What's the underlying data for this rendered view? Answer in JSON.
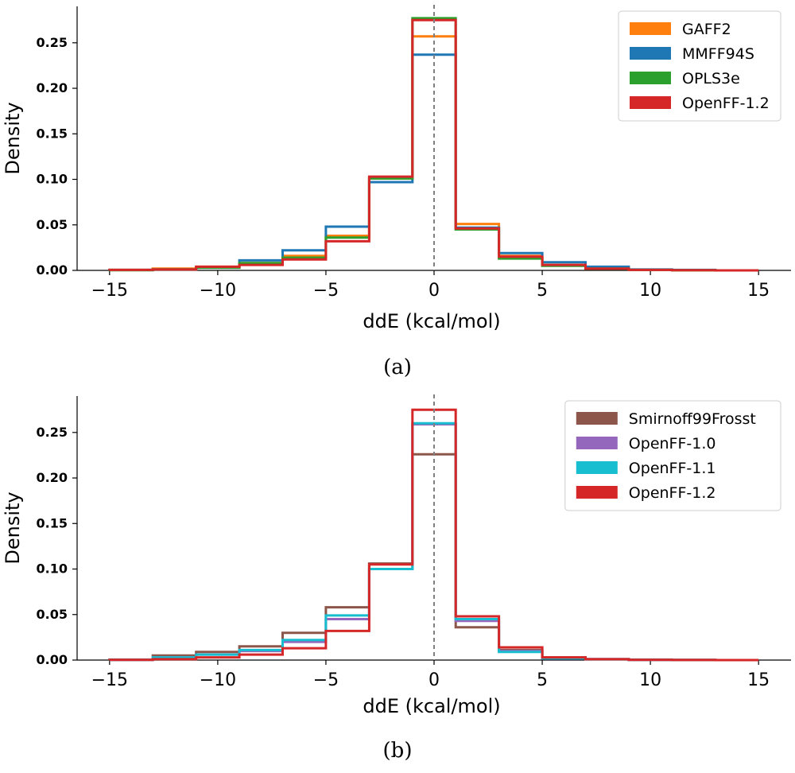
{
  "chart_data": [
    {
      "type": "step-histogram",
      "caption": "(a)",
      "xlabel": "ddE (kcal/mol)",
      "ylabel": "Density",
      "xlim": [
        -16.5,
        16.5
      ],
      "ylim": [
        0,
        0.29
      ],
      "x_ticks": [
        -15,
        -10,
        -5,
        0,
        5,
        10,
        15
      ],
      "x_tick_labels": [
        "−15",
        "−10",
        "−5",
        "0",
        "5",
        "10",
        "15"
      ],
      "y_ticks": [
        0.0,
        0.05,
        0.1,
        0.15,
        0.2,
        0.25
      ],
      "y_tick_labels": [
        "0.00",
        "0.05",
        "0.10",
        "0.15",
        "0.20",
        "0.25"
      ],
      "reference_line_x": 0,
      "legend_position": "upper right",
      "bin_edges": [
        -15,
        -13,
        -11,
        -9,
        -7,
        -5,
        -3,
        -1,
        1,
        3,
        5,
        7,
        9,
        11,
        13,
        15
      ],
      "series": [
        {
          "name": "GAFF2",
          "color": "#ff7f0e",
          "values": [
            0.0005,
            0.002,
            0.004,
            0.008,
            0.016,
            0.038,
            0.101,
            0.257,
            0.051,
            0.016,
            0.006,
            0.002,
            0.0005,
            0.0002,
            0.0
          ]
        },
        {
          "name": "MMFF94S",
          "color": "#1f77b4",
          "values": [
            0.0005,
            0.001,
            0.003,
            0.011,
            0.022,
            0.048,
            0.097,
            0.237,
            0.047,
            0.019,
            0.009,
            0.004,
            0.001,
            0.0005,
            0.0
          ]
        },
        {
          "name": "OPLS3e",
          "color": "#2ca02c",
          "values": [
            0.0003,
            0.001,
            0.003,
            0.008,
            0.014,
            0.036,
            0.101,
            0.277,
            0.045,
            0.013,
            0.005,
            0.002,
            0.0005,
            0.0002,
            0.0
          ]
        },
        {
          "name": "OpenFF-1.2",
          "color": "#d62728",
          "values": [
            0.0005,
            0.001,
            0.004,
            0.006,
            0.012,
            0.032,
            0.103,
            0.275,
            0.046,
            0.015,
            0.006,
            0.002,
            0.0005,
            0.0002,
            0.0
          ]
        }
      ]
    },
    {
      "type": "step-histogram",
      "caption": "(b)",
      "xlabel": "ddE (kcal/mol)",
      "ylabel": "Density",
      "xlim": [
        -16.5,
        16.5
      ],
      "ylim": [
        0,
        0.29
      ],
      "x_ticks": [
        -15,
        -10,
        -5,
        0,
        5,
        10,
        15
      ],
      "x_tick_labels": [
        "−15",
        "−10",
        "−5",
        "0",
        "5",
        "10",
        "15"
      ],
      "y_ticks": [
        0.0,
        0.05,
        0.1,
        0.15,
        0.2,
        0.25
      ],
      "y_tick_labels": [
        "0.00",
        "0.05",
        "0.10",
        "0.15",
        "0.20",
        "0.25"
      ],
      "reference_line_x": 0,
      "legend_position": "upper right",
      "bin_edges": [
        -15,
        -13,
        -11,
        -9,
        -7,
        -5,
        -3,
        -1,
        1,
        3,
        5,
        7,
        9,
        11,
        13,
        15
      ],
      "series": [
        {
          "name": "Smirnoff99Frosst",
          "color": "#8c564b",
          "values": [
            0.0005,
            0.005,
            0.009,
            0.015,
            0.03,
            0.058,
            0.106,
            0.226,
            0.036,
            0.011,
            0.003,
            0.001,
            0.0005,
            0.0002,
            0.0
          ]
        },
        {
          "name": "OpenFF-1.0",
          "color": "#9467bd",
          "values": [
            0.0003,
            0.003,
            0.006,
            0.01,
            0.02,
            0.045,
            0.1,
            0.259,
            0.043,
            0.01,
            0.002,
            0.001,
            0.0003,
            0.0001,
            0.0
          ]
        },
        {
          "name": "OpenFF-1.1",
          "color": "#17becf",
          "values": [
            0.0003,
            0.003,
            0.006,
            0.011,
            0.022,
            0.049,
            0.1,
            0.26,
            0.045,
            0.009,
            0.002,
            0.001,
            0.0003,
            0.0001,
            0.0
          ]
        },
        {
          "name": "OpenFF-1.2",
          "color": "#d62728",
          "values": [
            0.0003,
            0.001,
            0.003,
            0.006,
            0.013,
            0.032,
            0.105,
            0.275,
            0.048,
            0.014,
            0.003,
            0.001,
            0.0003,
            0.0001,
            0.0
          ]
        }
      ]
    }
  ]
}
